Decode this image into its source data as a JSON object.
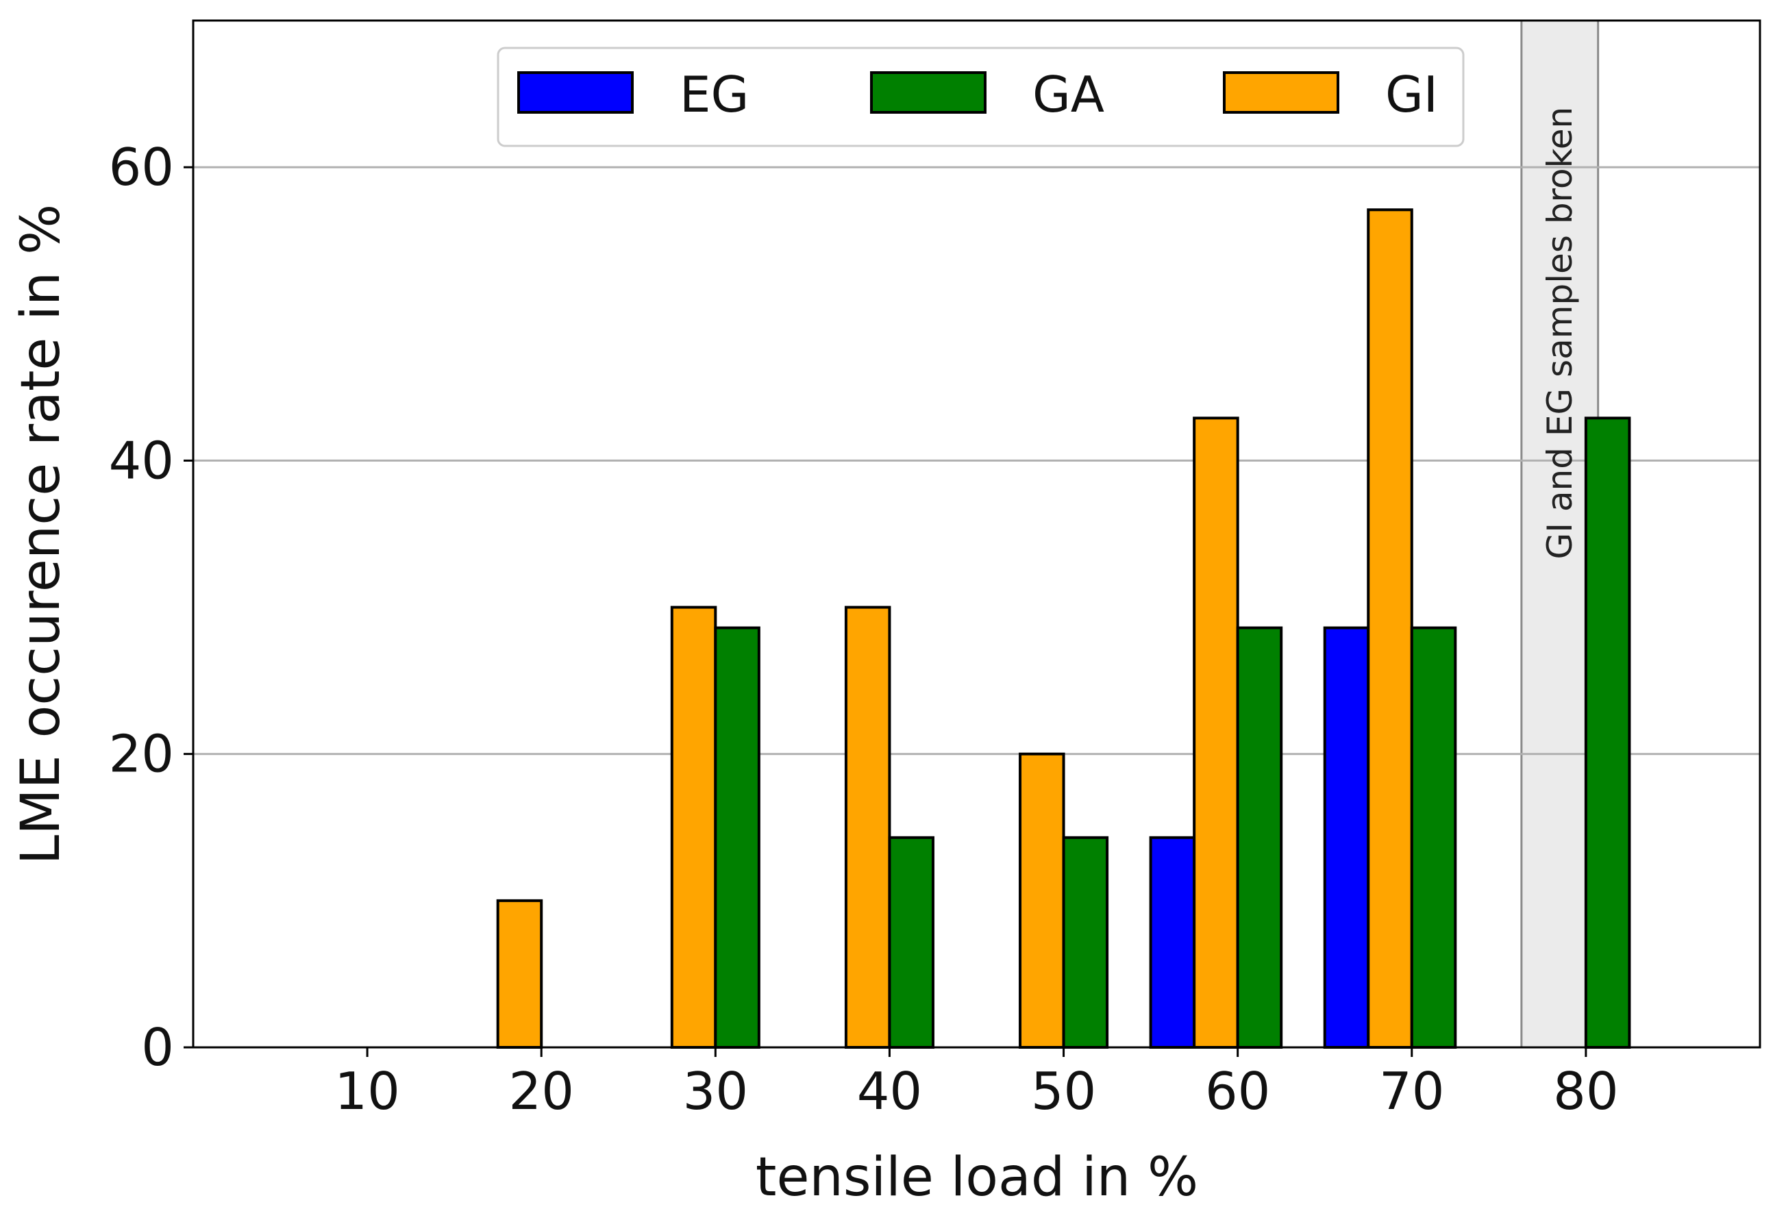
{
  "chart_data": {
    "type": "bar",
    "title": "",
    "xlabel": "tensile load in %",
    "ylabel": "LME occurence rate in %",
    "categories": [
      "10",
      "20",
      "30",
      "40",
      "50",
      "60",
      "70",
      "80"
    ],
    "x_values": [
      10,
      20,
      30,
      40,
      50,
      60,
      70,
      80
    ],
    "series": [
      {
        "name": "EG",
        "color": "#0000ff",
        "values": [
          0,
          0,
          0,
          0,
          0,
          14.3,
          28.6,
          null
        ]
      },
      {
        "name": "GI",
        "color": "#ffa500",
        "values": [
          0,
          10,
          30,
          30,
          20,
          42.9,
          57.1,
          null
        ]
      },
      {
        "name": "GA",
        "color": "#008000",
        "values": [
          0,
          0,
          28.6,
          14.3,
          14.3,
          28.6,
          28.6,
          42.9
        ]
      }
    ],
    "legend_order": [
      "EG",
      "GA",
      "GI"
    ],
    "legend_position": "top-center",
    "xlim": [
      0,
      90
    ],
    "ylim": [
      0,
      70
    ],
    "yticks": [
      0,
      20,
      40,
      60
    ],
    "ytick_labels": [
      "0",
      "20",
      "40",
      "60"
    ],
    "grid": "horizontal",
    "annotation": {
      "text": "GI and EG samples broken",
      "x_range": [
        76.3,
        80.7
      ],
      "fill": "#ebebeb"
    }
  }
}
